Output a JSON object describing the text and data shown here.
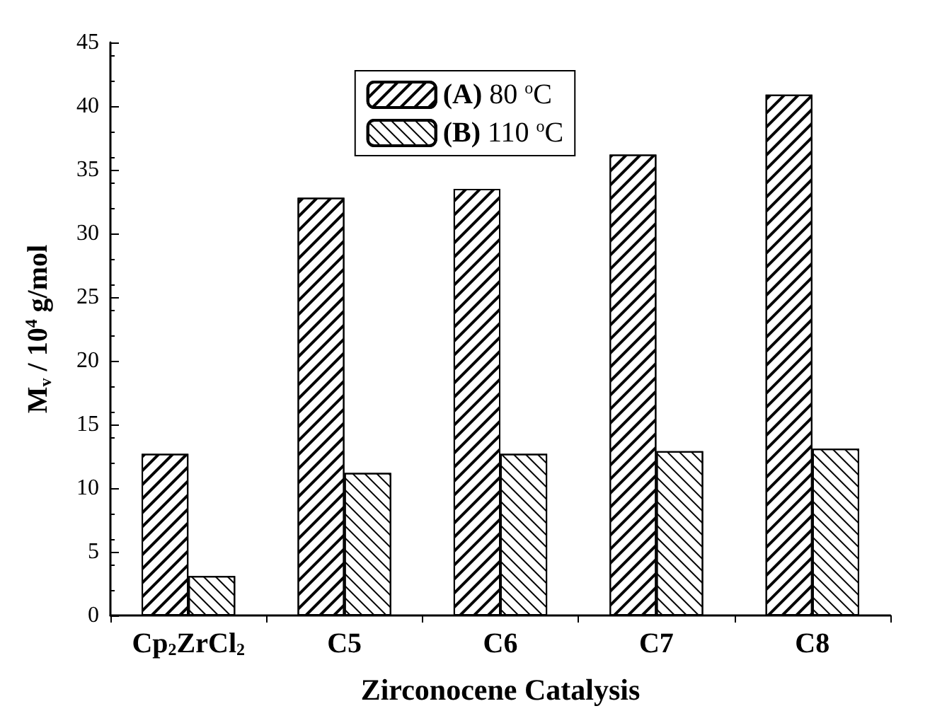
{
  "chart_data": {
    "type": "bar",
    "xlabel": "Zirconocene Catalysis",
    "ylabel": "M$_{v}$ / 10$^{4}$ g/mol",
    "categories": [
      "Cp$_{2}$ZrCl$_{2}$",
      "C5",
      "C6",
      "C7",
      "C8"
    ],
    "series": [
      {
        "name": "(A) 80 $^{o}$C",
        "color": "#ffffff",
        "values": [
          12.7,
          32.8,
          33.5,
          36.2,
          40.9
        ]
      },
      {
        "name": "(B) 110 $^{o}$C",
        "color": "#ffffff",
        "values": [
          3.1,
          11.2,
          12.7,
          12.9,
          13.1
        ]
      }
    ],
    "ylim": [
      0,
      45
    ],
    "yticks": [
      0,
      5,
      10,
      15,
      20,
      25,
      30,
      35,
      40,
      45
    ],
    "grid": false,
    "legend": "top"
  }
}
